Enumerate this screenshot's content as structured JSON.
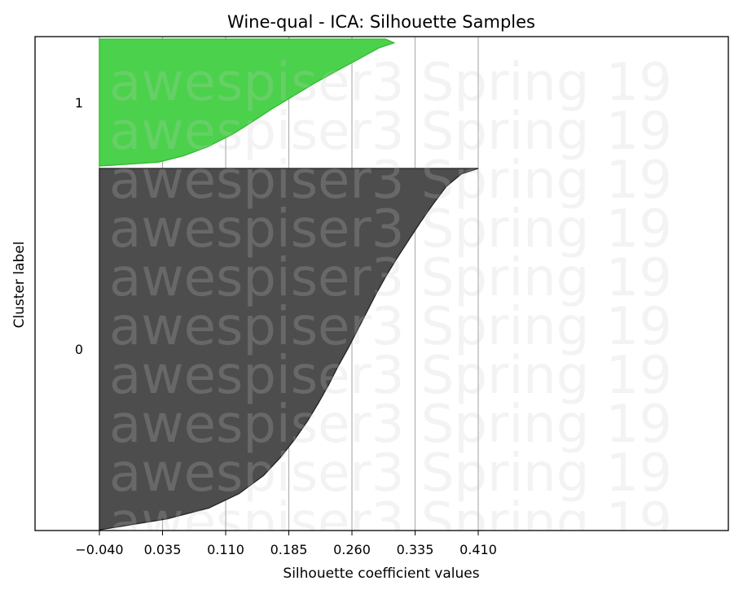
{
  "chart_data": {
    "type": "area",
    "title": "Wine-qual - ICA: Silhouette Samples",
    "xlabel": "Silhouette coefficient values",
    "ylabel": "Cluster label",
    "xlim": [
      -0.05,
      0.43
    ],
    "xticks": [
      "−0.040",
      "0.035",
      "0.110",
      "0.185",
      "0.260",
      "0.335",
      "0.410"
    ],
    "xtick_values": [
      -0.04,
      0.035,
      0.11,
      0.185,
      0.26,
      0.335,
      0.41
    ],
    "grid": "vertical",
    "watermark": "awespiser3 Spring 19",
    "clusters": [
      {
        "label": "0",
        "color": "#4d4d4d",
        "edge_color": "#222222",
        "size_fraction": 0.74,
        "profile": [
          [
            0.0,
            -0.039
          ],
          [
            0.03,
            0.04
          ],
          [
            0.06,
            0.09
          ],
          [
            0.1,
            0.126
          ],
          [
            0.15,
            0.155
          ],
          [
            0.2,
            0.175
          ],
          [
            0.25,
            0.192
          ],
          [
            0.3,
            0.207
          ],
          [
            0.35,
            0.22
          ],
          [
            0.4,
            0.232
          ],
          [
            0.45,
            0.243
          ],
          [
            0.5,
            0.255
          ],
          [
            0.55,
            0.266
          ],
          [
            0.6,
            0.277
          ],
          [
            0.65,
            0.288
          ],
          [
            0.7,
            0.3
          ],
          [
            0.75,
            0.313
          ],
          [
            0.8,
            0.327
          ],
          [
            0.85,
            0.341
          ],
          [
            0.9,
            0.356
          ],
          [
            0.95,
            0.372
          ],
          [
            0.985,
            0.39
          ],
          [
            1.0,
            0.41
          ]
        ]
      },
      {
        "label": "1",
        "color": "#4bd14b",
        "edge_color": "#33bb33",
        "size_fraction": 0.26,
        "profile": [
          [
            0.0,
            -0.04
          ],
          [
            0.03,
            0.03
          ],
          [
            0.08,
            0.06
          ],
          [
            0.15,
            0.088
          ],
          [
            0.25,
            0.118
          ],
          [
            0.35,
            0.142
          ],
          [
            0.45,
            0.165
          ],
          [
            0.55,
            0.19
          ],
          [
            0.65,
            0.215
          ],
          [
            0.75,
            0.242
          ],
          [
            0.85,
            0.27
          ],
          [
            0.93,
            0.292
          ],
          [
            0.97,
            0.31
          ],
          [
            1.0,
            0.3
          ]
        ]
      }
    ]
  }
}
